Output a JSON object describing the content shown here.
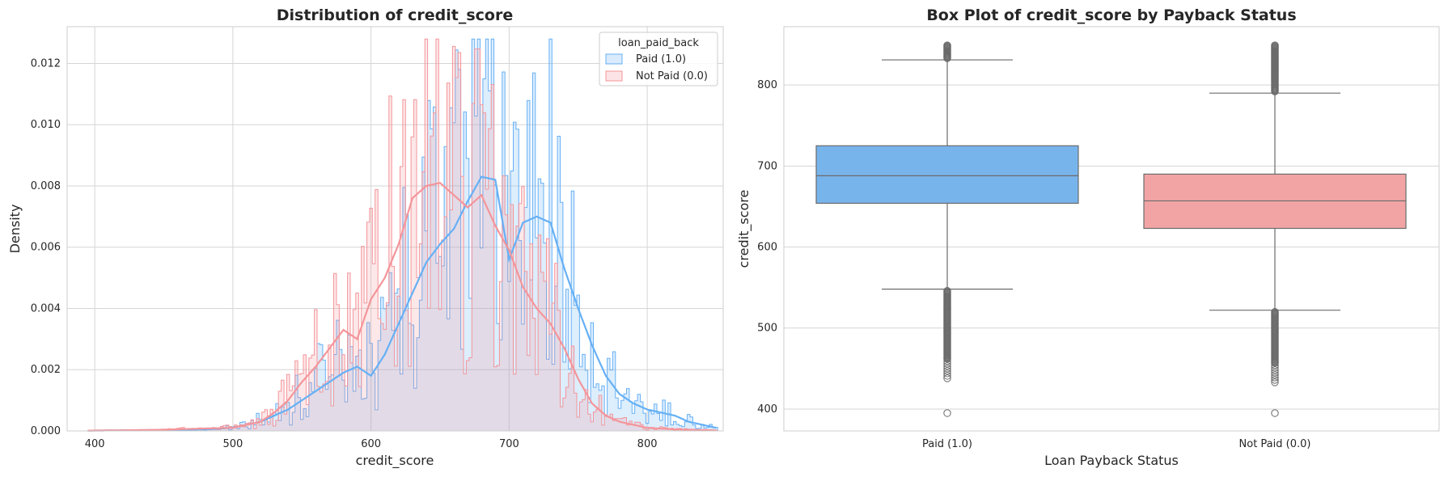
{
  "chart_data": [
    {
      "type": "histogram",
      "title": "Distribution of credit_score",
      "xlabel": "credit_score",
      "ylabel": "Density",
      "xlim": [
        380,
        855
      ],
      "ylim": [
        0,
        0.0132
      ],
      "xticks": [
        400,
        500,
        600,
        700,
        800
      ],
      "yticks": [
        0.0,
        0.002,
        0.004,
        0.006,
        0.008,
        0.01,
        0.012
      ],
      "ytick_labels": [
        "0.000",
        "0.002",
        "0.004",
        "0.006",
        "0.008",
        "0.010",
        "0.012"
      ],
      "grid": true,
      "legend": {
        "title": "loan_paid_back",
        "placement": "top-right",
        "entries": [
          "Paid (1.0)",
          "Not Paid (0.0)"
        ]
      },
      "series": [
        {
          "name": "Paid (1.0)",
          "color": "#66b0f5",
          "kde_x": [
            395,
            420,
            450,
            480,
            500,
            520,
            540,
            560,
            580,
            590,
            600,
            610,
            620,
            630,
            640,
            650,
            660,
            670,
            680,
            690,
            700,
            710,
            720,
            730,
            740,
            750,
            760,
            770,
            780,
            790,
            800,
            810,
            820,
            830,
            840,
            850
          ],
          "kde_y": [
            1e-05,
            2e-05,
            3e-05,
            5e-05,
            0.0001,
            0.0003,
            0.0007,
            0.0013,
            0.0019,
            0.0021,
            0.0018,
            0.0025,
            0.0035,
            0.0045,
            0.0055,
            0.0061,
            0.0066,
            0.0075,
            0.0083,
            0.0082,
            0.0056,
            0.0068,
            0.007,
            0.0068,
            0.0053,
            0.004,
            0.0028,
            0.0018,
            0.0012,
            0.0009,
            0.0007,
            0.0006,
            0.0005,
            0.0003,
            0.0002,
            0.0001
          ]
        },
        {
          "name": "Not Paid (0.0)",
          "color": "#f4959a",
          "kde_x": [
            395,
            420,
            450,
            480,
            500,
            520,
            530,
            540,
            550,
            560,
            570,
            580,
            590,
            600,
            610,
            620,
            630,
            640,
            650,
            660,
            670,
            680,
            690,
            700,
            710,
            720,
            730,
            740,
            750,
            760,
            770,
            780,
            790,
            800,
            820,
            850
          ],
          "kde_y": [
            1e-05,
            2e-05,
            4e-05,
            8e-05,
            0.0001,
            0.0003,
            0.0006,
            0.001,
            0.0016,
            0.0021,
            0.0027,
            0.0033,
            0.003,
            0.0043,
            0.005,
            0.0061,
            0.0076,
            0.008,
            0.0081,
            0.0077,
            0.0073,
            0.0077,
            0.0067,
            0.0059,
            0.0047,
            0.004,
            0.0035,
            0.0027,
            0.0017,
            0.0009,
            0.0005,
            0.0003,
            0.0002,
            0.0001,
            5e-05,
            2e-05
          ]
        }
      ]
    },
    {
      "type": "box",
      "title": "Box Plot of credit_score by Payback Status",
      "xlabel": "Loan Payback Status",
      "ylabel": "credit_score",
      "ylim": [
        373,
        872
      ],
      "yticks": [
        400,
        500,
        600,
        700,
        800
      ],
      "categories": [
        "Paid (1.0)",
        "Not Paid (0.0)"
      ],
      "grid": true,
      "boxes": [
        {
          "name": "Paid (1.0)",
          "color": "#78b4ec",
          "whisker_low": 548,
          "q1": 654,
          "median": 688,
          "q3": 725,
          "whisker_high": 831,
          "outliers_high_range": [
            833,
            849
          ],
          "outliers_low_range": [
            437,
            546
          ],
          "outliers": [
            395
          ]
        },
        {
          "name": "Not Paid (0.0)",
          "color": "#f2a4a5",
          "whisker_low": 522,
          "q1": 623,
          "median": 657,
          "q3": 690,
          "whisker_high": 790,
          "outliers_high_range": [
            792,
            849
          ],
          "outliers_low_range": [
            432,
            520
          ],
          "outliers": [
            395
          ]
        }
      ]
    }
  ]
}
